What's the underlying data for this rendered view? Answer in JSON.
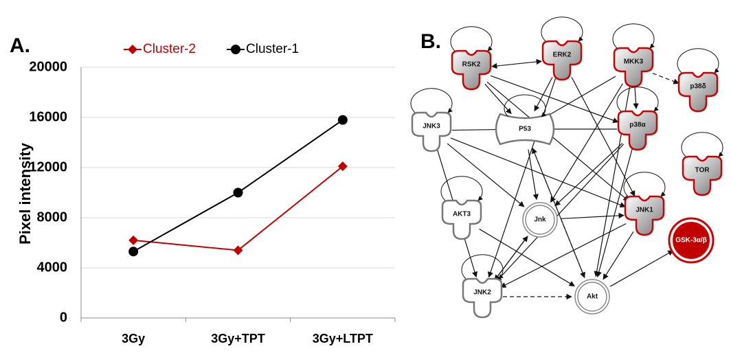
{
  "chart_data": {
    "type": "line",
    "panel_label": "A.",
    "y_label": "Pixel intensity",
    "categories": [
      "3Gy",
      "3Gy+TPT",
      "3Gy+LTPT"
    ],
    "series": [
      {
        "name": "Cluster-2",
        "color": "#c00000",
        "marker": "diamond",
        "values": [
          6200,
          5400,
          12100
        ]
      },
      {
        "name": "Cluster-1",
        "color": "#000000",
        "marker": "circle",
        "values": [
          5300,
          10000,
          15800
        ]
      }
    ],
    "ylim": [
      0,
      20000
    ],
    "yticks": [
      0,
      4000,
      8000,
      12000,
      16000,
      20000
    ],
    "grid": true,
    "legend": "top"
  },
  "network": {
    "panel_label": "B.",
    "nodes": [
      {
        "label": "RSK2"
      },
      {
        "label": "ERK2"
      },
      {
        "label": "MKK3"
      },
      {
        "label": "p38δ"
      },
      {
        "label": "JNK3"
      },
      {
        "label": "P53"
      },
      {
        "label": "p38α"
      },
      {
        "label": "TOR"
      },
      {
        "label": "AKT3"
      },
      {
        "label": "Jnk"
      },
      {
        "label": "JNK1"
      },
      {
        "label": "GSK-3α/β"
      },
      {
        "label": "JNK2"
      },
      {
        "label": "Akt"
      }
    ]
  }
}
